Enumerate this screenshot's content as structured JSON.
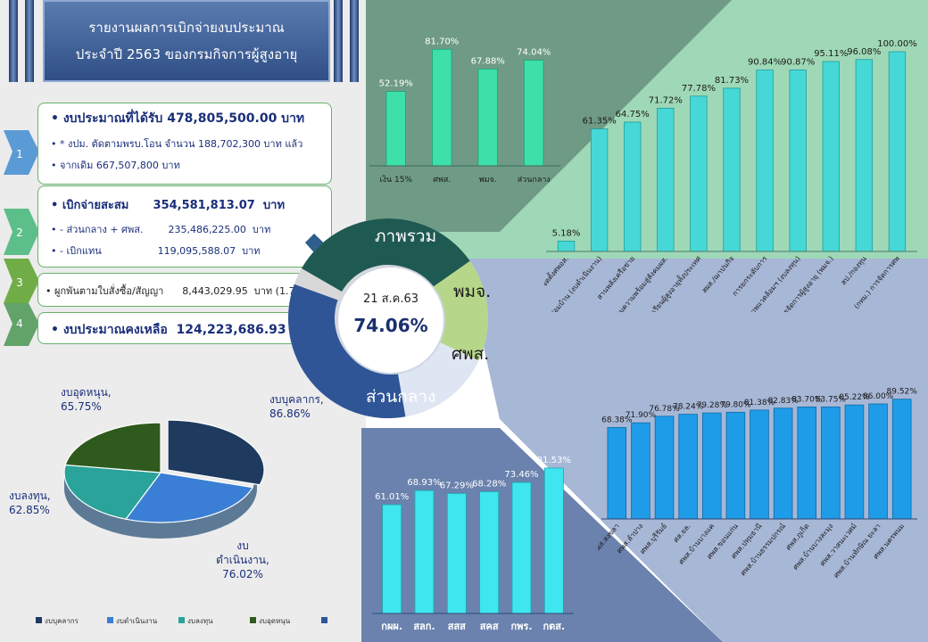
{
  "title": {
    "line1": "รายงานผลการเบิกจ่ายงบประมาณ",
    "line2": "ประจำปี 2563 ของกรมกิจการผู้สูงอายุ"
  },
  "steps": [
    {
      "num": "1",
      "lines": [
        "งบประมาณที่ได้รับ 478,805,500.00 บาท",
        "* งปม. ตัดตามพรบ.โอน จำนวน 188,702,300 บาท แล้ว",
        "จากเดิม 667,507,800 บาท"
      ]
    },
    {
      "num": "2",
      "lines": [
        "เบิกจ่ายสะสม      354,581,813.07  บาท",
        "- ส่วนกลาง + ศพส.        235,486,225.00  บาท",
        "- เบิกแทน                  119,095,588.07  บาท"
      ]
    },
    {
      "num": "3",
      "lines": [
        "ผูกพันตามใบสั่งซื้อ/สัญญา      8,443,029.95  บาท (1.76%)"
      ]
    },
    {
      "num": "4",
      "lines": [
        "งบประมาณคงเหลือ  124,223,686.93  บาท"
      ]
    }
  ],
  "center": {
    "date": "21 ส.ค.63",
    "value": "74.06%"
  },
  "segments": {
    "overall": "ภาพรวม",
    "pmj": "พมจ.",
    "spl": "ศพส.",
    "central": "ส่วนกลาง"
  },
  "colors": {
    "overall": "#1f5a52",
    "pmj": "#b6d68a",
    "spl": "#dfe6f3",
    "central": "#2f5597"
  },
  "chart_data": [
    {
      "type": "pie",
      "categories": [
        "งบบุคลากร",
        "งบดำเนินงาน",
        "งบลงทุน",
        "งบอุดหนุน"
      ],
      "point_labels": [
        "งบบุคลากร, 86.86%",
        "งบ ดำเนินงาน, 76.02%",
        "งบลงทุน, 62.85%",
        "งบอุดหนุน, 65.75%"
      ],
      "values": [
        86.86,
        76.02,
        62.85,
        65.75
      ],
      "colors": [
        "#1f3a5f",
        "#3a7fd5",
        "#2aa39a",
        "#2f5a1e"
      ],
      "legend": [
        "งบบุคลากร",
        "งบดำเนินงาน",
        "งบลงทุน",
        "งบอุดหนุน",
        ""
      ],
      "legend_position": "bottom"
    },
    {
      "type": "bar",
      "categories": [
        "เงิน 15%",
        "ศพส.",
        "พมจ.",
        "ส่วนกลาง"
      ],
      "values": [
        52.19,
        81.7,
        67.88,
        74.04
      ],
      "value_labels": [
        "52.19%",
        "81.70%",
        "67.88%",
        "74.04%"
      ],
      "ylim": [
        0,
        100
      ]
    },
    {
      "type": "bar",
      "categories": [
        "ขยายผลการจัดตั้งศพอส.",
        "ซ่อมบ้าน (งบดำเนินงาน)",
        "สานพลังเครือข่าย",
        "เตรียมความพร้อมสู่สังคมผส.",
        "โรงเรียนผู้สูงอายุทั้งประเทศ",
        "สผส./ฌาปนกิจ",
        "การยกระดับการ",
        "ปรับสภาพแวดล้อมฯ (งบลงทุน)",
        "การจัดการผู้สูงอายุ (พมจ.)",
        "สป./กองทุน",
        "(กทม.) การจัดการศพ"
      ],
      "values": [
        5.18,
        61.35,
        64.75,
        71.72,
        77.78,
        81.73,
        90.84,
        90.87,
        95.11,
        96.08,
        100.0
      ],
      "value_labels": [
        "5.18%",
        "61.35%",
        "64.75%",
        "71.72%",
        "77.78%",
        "81.73%",
        "90.84%",
        "90.87%",
        "95.11%",
        "96.08%",
        "100.00%"
      ],
      "ylim": [
        0,
        100
      ]
    },
    {
      "type": "bar",
      "categories": [
        "กผผ.",
        "สลก.",
        "สสส",
        "สคส",
        "กพร.",
        "กตส."
      ],
      "values": [
        61.01,
        68.93,
        67.29,
        68.28,
        73.46,
        81.53
      ],
      "value_labels": [
        "61.01%",
        "68.93%",
        "67.29%",
        "68.28%",
        "73.46%",
        "81.53%"
      ],
      "ylim": [
        0,
        100
      ]
    },
    {
      "type": "bar",
      "categories": [
        "ศพส.สงขลา",
        "ศพส.ลำปาง",
        "ศพส.บุรีรัมย์",
        "ศส.ยล.",
        "ศพส.บ้านบางแค",
        "ศพส.ขอนแก่น",
        "ศพส.ปทุมธานี",
        "ศพส.บ้านธรรมปกรณ์",
        "ศพส.ภูเก็ต",
        "ศพส.บ้านบางละมุง",
        "ศพส.วาสนะเวศม์",
        "ศพส.บ้านทักษิณ ยะลา",
        "ศพส.นครพนม"
      ],
      "values": [
        68.38,
        71.9,
        76.78,
        78.24,
        79.28,
        79.8,
        81.38,
        82.83,
        83.7,
        83.75,
        85.22,
        86.0,
        89.52
      ],
      "value_labels": [
        "68.38%",
        "71.90%",
        "76.78%",
        "78.24%",
        "79.28%",
        "79.80%",
        "81.38%",
        "82.83%",
        "83.70%",
        "83.75%",
        "85.22%",
        "86.00%",
        "89.52%"
      ],
      "ylim": [
        0,
        100
      ]
    }
  ]
}
